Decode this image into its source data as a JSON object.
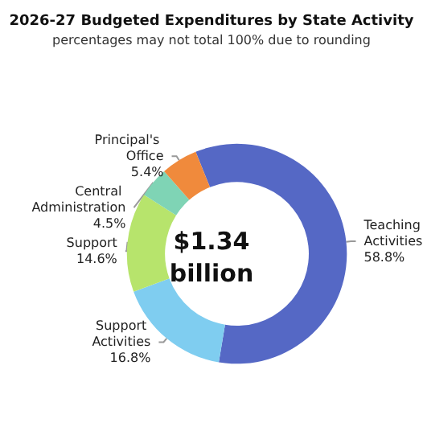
{
  "chart_data": {
    "type": "donut",
    "title": "2026-27 Budgeted Expenditures by State Activity",
    "subtitle": "percentages may not total 100% due to rounding",
    "categories": [
      "Teaching Activities",
      "Support Activities",
      "Support",
      "Central Administration",
      "Principal's Office"
    ],
    "values": [
      58.8,
      16.8,
      14.6,
      4.5,
      5.4
    ],
    "colors": [
      "#5568c5",
      "#7fcdf0",
      "#b7e46c",
      "#7fd4b5",
      "#f08a3c"
    ],
    "value_labels": [
      "58.8%",
      "16.8%",
      "14.6%",
      "4.5%",
      "5.4%"
    ],
    "legend": false,
    "annotations": [
      "$1.34\nbillion"
    ]
  }
}
